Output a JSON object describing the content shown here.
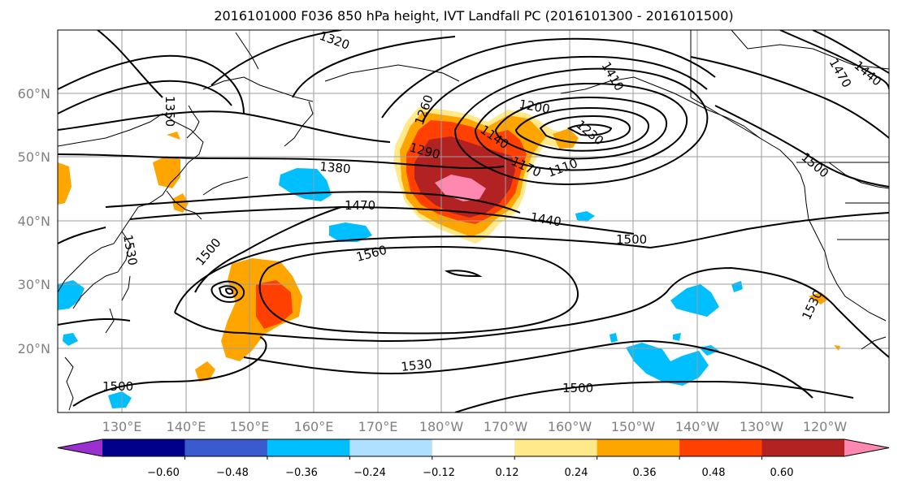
{
  "title": "2016101000 F036 850 hPa height, IVT Landfall PC (2016101300 - 2016101500)",
  "longitude_labels": [
    "130°E",
    "140°E",
    "150°E",
    "160°E",
    "170°E",
    "180°W",
    "170°W",
    "160°W",
    "150°W",
    "140°W",
    "130°W",
    "120°W"
  ],
  "latitude_labels": [
    "20°N",
    "30°N",
    "40°N",
    "50°N",
    "60°N"
  ],
  "colorbar": {
    "colors": [
      "#9b30d0",
      "#00008b",
      "#3a5bd0",
      "#00bfff",
      "#b0e0ff",
      "#ffffff",
      "#ffe98a",
      "#ffa500",
      "#ff4000",
      "#b22222",
      "#ff88b0"
    ],
    "tick_labels": [
      "−0.60",
      "−0.48",
      "−0.36",
      "−0.24",
      "−0.12",
      "0.12",
      "0.24",
      "0.36",
      "0.48",
      "0.60"
    ]
  },
  "contour_labels": [
    "1500",
    "1560",
    "1530",
    "1500",
    "1500",
    "1470",
    "1440",
    "1380",
    "1290",
    "1260",
    "1200",
    "1140",
    "1170",
    "1110",
    "1230",
    "1410",
    "1500",
    "1530",
    "1500",
    "1440",
    "1470",
    "1350",
    "1530",
    "1320"
  ]
}
